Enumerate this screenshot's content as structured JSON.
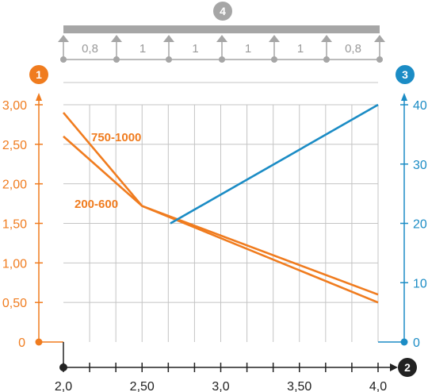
{
  "chart_data": {
    "type": "line",
    "x": {
      "ticks": [
        2.0,
        2.5,
        3.0,
        3.5,
        4.0
      ],
      "tick_labels": [
        "2,0",
        "2,50",
        "3,0",
        "3,50",
        "4,0"
      ],
      "range": [
        2.0,
        4.0
      ],
      "marker": "2"
    },
    "y_left": {
      "ticks": [
        0,
        0.5,
        1.0,
        1.5,
        2.0,
        2.5,
        3.0
      ],
      "tick_labels": [
        "0",
        "0,50",
        "1,00",
        "1,50",
        "2,00",
        "2,50",
        "3,00"
      ],
      "range": [
        0,
        3.0
      ],
      "marker": "1",
      "color": "#f07c1f"
    },
    "y_right": {
      "ticks": [
        0,
        10,
        20,
        30,
        40
      ],
      "tick_labels": [
        "0",
        "10",
        "20",
        "30",
        "40"
      ],
      "range": [
        0,
        40
      ],
      "marker": "3",
      "color": "#1b8cc5"
    },
    "grid": true,
    "series": [
      {
        "name": "750-1000",
        "axis": "left",
        "color": "#f07c1f",
        "x": [
          2.0,
          2.5,
          4.0
        ],
        "y": [
          2.9,
          1.72,
          0.5
        ]
      },
      {
        "name": "200-600",
        "axis": "left",
        "color": "#f07c1f",
        "x": [
          2.0,
          2.5,
          4.0
        ],
        "y": [
          2.6,
          1.72,
          0.6
        ]
      },
      {
        "axis": "right",
        "color": "#1b8cc5",
        "x": [
          2.68,
          4.0
        ],
        "y": [
          20,
          40
        ]
      }
    ],
    "beam": {
      "marker": "4",
      "span_labels": [
        "0,8",
        "1",
        "1",
        "1",
        "1",
        "0,8"
      ],
      "color": "#a6a6a6"
    }
  }
}
